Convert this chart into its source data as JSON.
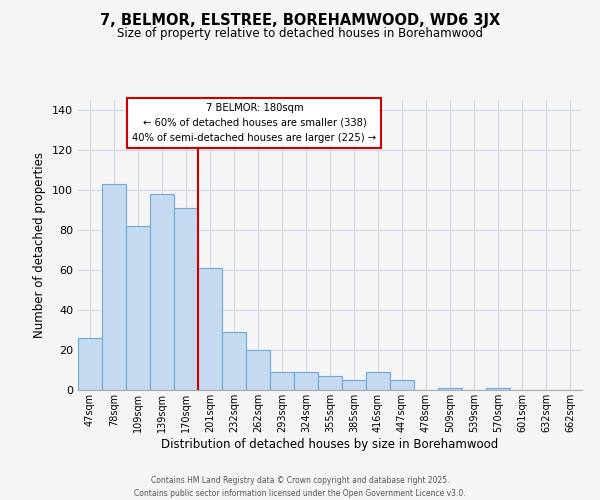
{
  "title": "7, BELMOR, ELSTREE, BOREHAMWOOD, WD6 3JX",
  "subtitle": "Size of property relative to detached houses in Borehamwood",
  "xlabel": "Distribution of detached houses by size in Borehamwood",
  "ylabel": "Number of detached properties",
  "categories": [
    "47sqm",
    "78sqm",
    "109sqm",
    "139sqm",
    "170sqm",
    "201sqm",
    "232sqm",
    "262sqm",
    "293sqm",
    "324sqm",
    "355sqm",
    "385sqm",
    "416sqm",
    "447sqm",
    "478sqm",
    "509sqm",
    "539sqm",
    "570sqm",
    "601sqm",
    "632sqm",
    "662sqm"
  ],
  "values": [
    26,
    103,
    82,
    98,
    91,
    61,
    29,
    20,
    9,
    9,
    7,
    5,
    9,
    5,
    0,
    1,
    0,
    1,
    0,
    0,
    0
  ],
  "bar_color": "#c5d9f1",
  "bar_edge_color": "#6fa8d4",
  "vline_x": 4.5,
  "vline_color": "#cc0000",
  "annotation_text": "7 BELMOR: 180sqm\n← 60% of detached houses are smaller (338)\n40% of semi-detached houses are larger (225) →",
  "annotation_box_color": "#ffffff",
  "annotation_box_edge": "#cc0000",
  "ylim": [
    0,
    145
  ],
  "yticks": [
    0,
    20,
    40,
    60,
    80,
    100,
    120,
    140
  ],
  "footer_line1": "Contains HM Land Registry data © Crown copyright and database right 2025.",
  "footer_line2": "Contains public sector information licensed under the Open Government Licence v3.0.",
  "bg_color": "#f5f5f5",
  "grid_color": "#d0d8e8"
}
